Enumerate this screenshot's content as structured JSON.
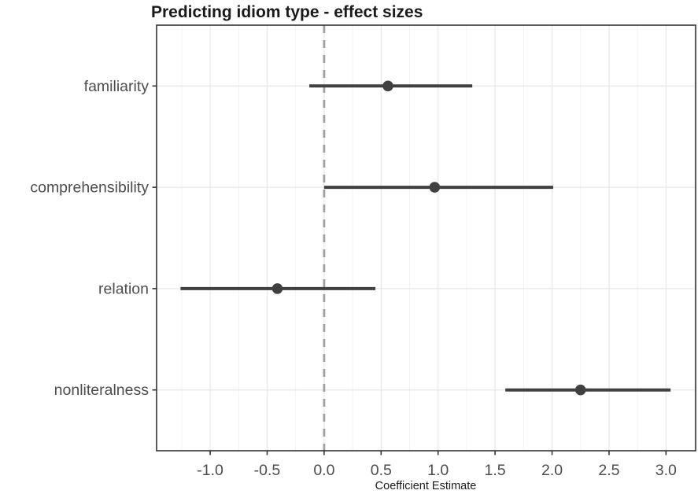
{
  "title": "Predicting idiom type - effect sizes",
  "colors": {
    "title_text": "#1a1a1a",
    "axis_text": "#4d4d4d",
    "axis_title_text": "#1a1a1a",
    "panel_border": "#333333",
    "tick_mark": "#333333",
    "grid_major": "#e7e7e7",
    "grid_minor": "#f1f1f1",
    "zero_line": "#a0a0a0",
    "estimate": "#404040",
    "background": "#ffffff"
  },
  "chart_data": {
    "type": "scatter",
    "subtype": "coefficient-plot-horizontal-ci",
    "title": "Predicting idiom type - effect sizes",
    "xlabel": "Coefficient Estimate",
    "ylabel": "",
    "categories": [
      "familiarity",
      "comprehensibility",
      "relation",
      "nonliteralness"
    ],
    "points": [
      {
        "label": "familiarity",
        "estimate": 0.56,
        "ci_low": -0.13,
        "ci_high": 1.3
      },
      {
        "label": "comprehensibility",
        "estimate": 0.97,
        "ci_low": 0.0,
        "ci_high": 2.01
      },
      {
        "label": "relation",
        "estimate": -0.41,
        "ci_low": -1.26,
        "ci_high": 0.45
      },
      {
        "label": "nonliteralness",
        "estimate": 2.25,
        "ci_low": 1.59,
        "ci_high": 3.04
      }
    ],
    "xlim": [
      -1.47,
      3.26
    ],
    "x_ticks": [
      -1.0,
      -0.5,
      0.0,
      0.5,
      1.0,
      1.5,
      2.0,
      2.5,
      3.0
    ],
    "x_tick_labels": [
      "-1.0",
      "-0.5",
      "0.0",
      "0.5",
      "1.0",
      "1.5",
      "2.0",
      "2.5",
      "3.0"
    ],
    "minor_grid_step": 0.25,
    "reference_line_x": 0,
    "grid": true,
    "legend": "none"
  }
}
